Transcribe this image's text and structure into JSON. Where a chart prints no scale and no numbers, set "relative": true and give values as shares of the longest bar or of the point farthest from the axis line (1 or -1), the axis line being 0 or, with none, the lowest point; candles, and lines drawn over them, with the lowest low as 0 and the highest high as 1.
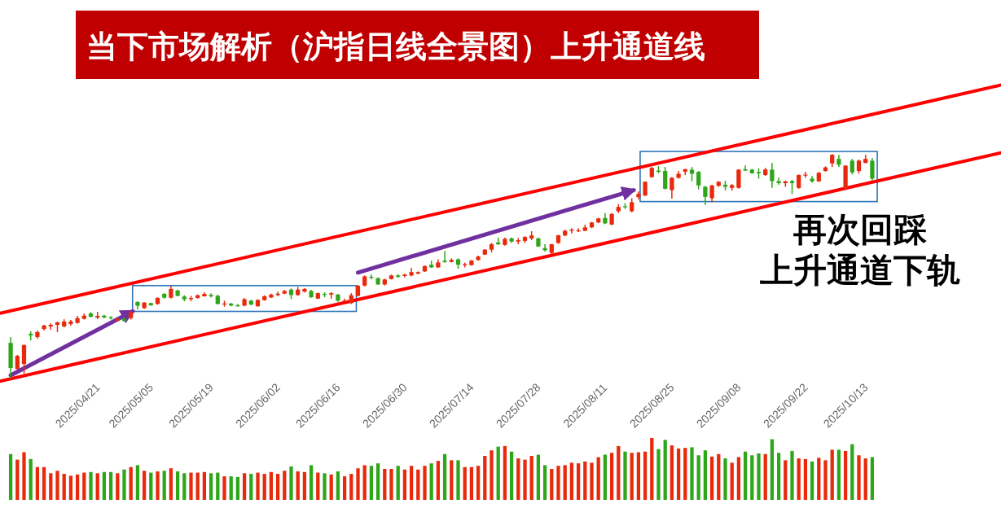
{
  "chart_data": [
    {
      "type": "candlestick",
      "title": "当下市场解析（沪指日线全景图）上升通道线",
      "relative": true,
      "tick_labels": "x",
      "categories": [
        null,
        null,
        null,
        null,
        null,
        null,
        null,
        null,
        null,
        null,
        "2025/04/21",
        null,
        null,
        null,
        null,
        null,
        null,
        null,
        "2025/05/05",
        null,
        null,
        null,
        null,
        null,
        null,
        null,
        null,
        "2025/05/19",
        null,
        null,
        null,
        null,
        null,
        null,
        null,
        null,
        null,
        "2025/06/02",
        null,
        null,
        null,
        null,
        null,
        null,
        null,
        null,
        "2025/06/16",
        null,
        null,
        null,
        null,
        null,
        null,
        null,
        null,
        null,
        "2025/06/30",
        null,
        null,
        null,
        null,
        null,
        null,
        null,
        null,
        null,
        "2025/07/14",
        null,
        null,
        null,
        null,
        null,
        null,
        null,
        null,
        null,
        "2025/07/28",
        null,
        null,
        null,
        null,
        null,
        null,
        null,
        null,
        null,
        "2025/08/11",
        null,
        null,
        null,
        null,
        null,
        null,
        null,
        null,
        null,
        "2025/08/25",
        null,
        null,
        null,
        null,
        null,
        null,
        null,
        null,
        null,
        "2025/09/08",
        null,
        null,
        null,
        null,
        null,
        null,
        null,
        null,
        null,
        "2025/09/22",
        null,
        null,
        null,
        null,
        null,
        null,
        null,
        null,
        "2025/10/13",
        null,
        null,
        null,
        null
      ],
      "ohlc": [
        [
          0.159,
          0.185,
          0,
          0.047
        ],
        [
          0.043,
          0.105,
          0.04,
          0.101
        ],
        [
          0.065,
          0.152,
          0.022,
          0.149
        ],
        [
          0.199,
          0.21,
          0.17,
          0.192
        ],
        [
          0.185,
          0.214,
          0.178,
          0.207
        ],
        [
          0.221,
          0.239,
          0.214,
          0.236
        ],
        [
          0.232,
          0.246,
          0.217,
          0.239
        ],
        [
          0.239,
          0.254,
          0.207,
          0.25
        ],
        [
          0.232,
          0.264,
          0.228,
          0.254
        ],
        [
          0.243,
          0.261,
          0.236,
          0.254
        ],
        [
          0.248,
          0.279,
          0.245,
          0.269
        ],
        [
          0.266,
          0.29,
          0.263,
          0.28
        ],
        [
          0.29,
          0.296,
          0.272,
          0.275
        ],
        [
          0.272,
          0.297,
          0.264,
          0.279
        ],
        [
          0.28,
          0.284,
          0.268,
          0.272
        ],
        [
          0.272,
          0.278,
          0.263,
          0.268
        ],
        [
          0.257,
          0.268,
          0.256,
          0.266
        ],
        [
          0.266,
          0.272,
          0.254,
          0.256
        ],
        [
          0.269,
          0.3,
          0.263,
          0.296
        ],
        [
          0.341,
          0.344,
          0.308,
          0.324
        ],
        [
          0.314,
          0.341,
          0.31,
          0.338
        ],
        [
          0.336,
          0.338,
          0.324,
          0.326
        ],
        [
          0.332,
          0.362,
          0.329,
          0.359
        ],
        [
          0.377,
          0.38,
          0.356,
          0.36
        ],
        [
          0.36,
          0.413,
          0.356,
          0.399
        ],
        [
          0.392,
          0.396,
          0.366,
          0.368
        ],
        [
          0.365,
          0.371,
          0.344,
          0.353
        ],
        [
          0.354,
          0.368,
          0.344,
          0.359
        ],
        [
          0.359,
          0.374,
          0.356,
          0.371
        ],
        [
          0.366,
          0.384,
          0.365,
          0.377
        ],
        [
          0.372,
          0.38,
          0.362,
          0.366
        ],
        [
          0.368,
          0.374,
          0.33,
          0.332
        ],
        [
          0.33,
          0.347,
          0.32,
          0.334
        ],
        [
          0.334,
          0.337,
          0.322,
          0.325
        ],
        [
          0.327,
          0.332,
          0.32,
          0.322
        ],
        [
          0.325,
          0.359,
          0.322,
          0.353
        ],
        [
          0.347,
          0.35,
          0.326,
          0.33
        ],
        [
          0.322,
          0.353,
          0.32,
          0.35
        ],
        [
          0.349,
          0.371,
          0.347,
          0.366
        ],
        [
          0.361,
          0.378,
          0.359,
          0.374
        ],
        [
          0.372,
          0.387,
          0.366,
          0.378
        ],
        [
          0.378,
          0.395,
          0.376,
          0.39
        ],
        [
          0.396,
          0.401,
          0.354,
          0.372
        ],
        [
          0.372,
          0.408,
          0.368,
          0.396
        ],
        [
          0.387,
          0.402,
          0.383,
          0.399
        ],
        [
          0.39,
          0.395,
          0.36,
          0.362
        ],
        [
          0.356,
          0.383,
          0.354,
          0.38
        ],
        [
          0.377,
          0.384,
          0.362,
          0.374
        ],
        [
          0.374,
          0.384,
          0.356,
          0.38
        ],
        [
          0.374,
          0.377,
          0.342,
          0.347
        ],
        [
          0.344,
          0.356,
          0.342,
          0.347
        ],
        [
          0.336,
          0.38,
          0.332,
          0.371
        ],
        [
          0.368,
          0.417,
          0.366,
          0.413
        ],
        [
          0.414,
          0.459,
          0.41,
          0.455
        ],
        [
          0.453,
          0.463,
          0.441,
          0.449
        ],
        [
          0.447,
          0.45,
          0.417,
          0.419
        ],
        [
          0.419,
          0.445,
          0.414,
          0.441
        ],
        [
          0.443,
          0.463,
          0.441,
          0.459
        ],
        [
          0.459,
          0.465,
          0.448,
          0.453
        ],
        [
          0.457,
          0.467,
          0.45,
          0.463
        ],
        [
          0.459,
          0.493,
          0.455,
          0.474
        ],
        [
          0.467,
          0.477,
          0.465,
          0.474
        ],
        [
          0.477,
          0.504,
          0.475,
          0.501
        ],
        [
          0.507,
          0.525,
          0.493,
          0.495
        ],
        [
          0.495,
          0.531,
          0.493,
          0.517
        ],
        [
          0.525,
          0.568,
          0.516,
          0.519
        ],
        [
          0.519,
          0.535,
          0.517,
          0.528
        ],
        [
          0.531,
          0.535,
          0.489,
          0.507
        ],
        [
          0.505,
          0.516,
          0.495,
          0.51
        ],
        [
          0.505,
          0.528,
          0.503,
          0.525
        ],
        [
          0.528,
          0.547,
          0.525,
          0.543
        ],
        [
          0.552,
          0.576,
          0.55,
          0.574
        ],
        [
          0.574,
          0.604,
          0.562,
          0.598
        ],
        [
          0.606,
          0.628,
          0.595,
          0.598
        ],
        [
          0.595,
          0.628,
          0.592,
          0.622
        ],
        [
          0.624,
          0.628,
          0.604,
          0.61
        ],
        [
          0.61,
          0.626,
          0.598,
          0.616
        ],
        [
          0.613,
          0.634,
          0.604,
          0.63
        ],
        [
          0.624,
          0.656,
          0.616,
          0.637
        ],
        [
          0.624,
          0.628,
          0.586,
          0.588
        ],
        [
          0.581,
          0.598,
          0.565,
          0.571
        ],
        [
          0.559,
          0.6,
          0.555,
          0.598
        ],
        [
          0.604,
          0.64,
          0.6,
          0.638
        ],
        [
          0.637,
          0.662,
          0.634,
          0.658
        ],
        [
          0.658,
          0.67,
          0.646,
          0.663
        ],
        [
          0.658,
          0.67,
          0.652,
          0.66
        ],
        [
          0.658,
          0.685,
          0.656,
          0.673
        ],
        [
          0.673,
          0.697,
          0.67,
          0.695
        ],
        [
          0.695,
          0.716,
          0.692,
          0.713
        ],
        [
          0.715,
          0.737,
          0.688,
          0.691
        ],
        [
          0.686,
          0.737,
          0.682,
          0.733
        ],
        [
          0.745,
          0.776,
          0.737,
          0.764
        ],
        [
          0.767,
          0.781,
          0.755,
          0.764
        ],
        [
          0.745,
          0.803,
          0.74,
          0.785
        ],
        [
          0.808,
          0.833,
          0.797,
          0.822
        ],
        [
          0.815,
          0.878,
          0.813,
          0.876
        ],
        [
          0.897,
          0.942,
          0.894,
          0.938
        ],
        [
          0.926,
          0.946,
          0.914,
          0.921
        ],
        [
          0.924,
          0.942,
          0.842,
          0.845
        ],
        [
          0.839,
          0.897,
          0.801,
          0.894
        ],
        [
          0.894,
          0.924,
          0.89,
          0.912
        ],
        [
          0.921,
          0.934,
          0.906,
          0.932
        ],
        [
          0.93,
          0.942,
          0.878,
          0.912
        ],
        [
          0.92,
          0.924,
          0.842,
          0.86
        ],
        [
          0.854,
          0.857,
          0.773,
          0.809
        ],
        [
          0.803,
          0.863,
          0.785,
          0.86
        ],
        [
          0.858,
          0.879,
          0.854,
          0.876
        ],
        [
          0.863,
          0.881,
          0.837,
          0.854
        ],
        [
          0.849,
          0.866,
          0.837,
          0.861
        ],
        [
          0.849,
          0.932,
          0.845,
          0.93
        ],
        [
          0.932,
          0.95,
          0.924,
          0.926
        ],
        [
          0.93,
          0.934,
          0.912,
          0.914
        ],
        [
          0.92,
          0.936,
          0.89,
          0.914
        ],
        [
          0.906,
          0.938,
          0.902,
          0.931
        ],
        [
          0.93,
          0.96,
          0.849,
          0.879
        ],
        [
          0.879,
          0.894,
          0.863,
          0.87
        ],
        [
          0.87,
          0.881,
          0.854,
          0.878
        ],
        [
          0.879,
          0.885,
          0.821,
          0.87
        ],
        [
          0.849,
          0.909,
          0.845,
          0.906
        ],
        [
          0.906,
          0.921,
          0.894,
          0.908
        ],
        [
          0.89,
          0.902,
          0.873,
          0.878
        ],
        [
          0.878,
          0.92,
          0.876,
          0.916
        ],
        [
          0.924,
          0.945,
          0.921,
          0.94
        ],
        [
          0.958,
          1.0,
          0.942,
          0.996
        ],
        [
          0.978,
          0.996,
          0.942,
          0.952
        ],
        [
          0.845,
          0.95,
          0.842,
          0.948
        ],
        [
          0.97,
          0.978,
          0.909,
          0.918
        ],
        [
          0.924,
          0.975,
          0.912,
          0.97
        ],
        [
          0.96,
          0.996,
          0.958,
          0.978
        ],
        [
          0.97,
          0.982,
          0.882,
          0.89
        ]
      ],
      "colors": [
        "#2ea61a",
        "#e8290b",
        "#e8290b",
        "#2ea61a",
        "#e8290b",
        "#e8290b",
        "#e8290b",
        "#e8290b",
        "#e8290b",
        "#e8290b",
        "#e8290b",
        "#e8290b",
        "#2ea61a",
        "#e8290b",
        "#2ea61a",
        "#2ea61a",
        "#e8290b",
        "#2ea61a",
        "#e8290b",
        "#2ea61a",
        "#e8290b",
        "#2ea61a",
        "#e8290b",
        "#2ea61a",
        "#e8290b",
        "#2ea61a",
        "#2ea61a",
        "#e8290b",
        "#e8290b",
        "#e8290b",
        "#2ea61a",
        "#2ea61a",
        "#e8290b",
        "#2ea61a",
        "#2ea61a",
        "#e8290b",
        "#2ea61a",
        "#e8290b",
        "#e8290b",
        "#e8290b",
        "#e8290b",
        "#e8290b",
        "#2ea61a",
        "#e8290b",
        "#e8290b",
        "#2ea61a",
        "#e8290b",
        "#2ea61a",
        "#e8290b",
        "#2ea61a",
        "#e8290b",
        "#e8290b",
        "#e8290b",
        "#e8290b",
        "#2ea61a",
        "#2ea61a",
        "#e8290b",
        "#e8290b",
        "#2ea61a",
        "#e8290b",
        "#e8290b",
        "#e8290b",
        "#e8290b",
        "#2ea61a",
        "#e8290b",
        "#2ea61a",
        "#e8290b",
        "#2ea61a",
        "#e8290b",
        "#e8290b",
        "#e8290b",
        "#e8290b",
        "#e8290b",
        "#2ea61a",
        "#e8290b",
        "#2ea61a",
        "#e8290b",
        "#e8290b",
        "#e8290b",
        "#2ea61a",
        "#2ea61a",
        "#e8290b",
        "#e8290b",
        "#e8290b",
        "#e8290b",
        "#e8290b",
        "#e8290b",
        "#e8290b",
        "#e8290b",
        "#2ea61a",
        "#e8290b",
        "#e8290b",
        "#2ea61a",
        "#e8290b",
        "#e8290b",
        "#e8290b",
        "#e8290b",
        "#2ea61a",
        "#2ea61a",
        "#e8290b",
        "#e8290b",
        "#e8290b",
        "#2ea61a",
        "#2ea61a",
        "#2ea61a",
        "#e8290b",
        "#e8290b",
        "#2ea61a",
        "#e8290b",
        "#e8290b",
        "#2ea61a",
        "#2ea61a",
        "#2ea61a",
        "#e8290b",
        "#2ea61a",
        "#2ea61a",
        "#e8290b",
        "#2ea61a",
        "#e8290b",
        "#e8290b",
        "#2ea61a",
        "#e8290b",
        "#e8290b",
        "#e8290b",
        "#2ea61a",
        "#e8290b",
        "#2ea61a",
        "#e8290b",
        "#e8290b",
        "#2ea61a"
      ],
      "series": [
        {
          "type": "line",
          "color": "#ff0000",
          "x": [
            "2025/04/21",
            "2025/10/13"
          ],
          "values": [
            0.369,
            1.149
          ]
        },
        {
          "type": "line",
          "color": "#ff0000",
          "x": [
            "2025/04/21",
            "2025/10/13"
          ],
          "values": [
            0.067,
            0.847
          ]
        }
      ],
      "annotations": [
        "再次回踩",
        "上升通道下轨"
      ]
    },
    {
      "type": "bar",
      "relative": true,
      "categories": [
        null,
        null,
        null,
        null,
        null,
        null,
        null,
        null,
        null,
        null,
        null,
        null,
        null,
        null,
        null,
        null,
        null,
        null,
        null,
        null,
        null,
        null,
        null,
        null,
        null,
        null,
        null,
        null,
        null,
        null,
        null,
        null,
        null,
        null,
        null,
        null,
        null,
        null,
        null,
        null,
        null,
        null,
        null,
        null,
        null,
        null,
        null,
        null,
        null,
        null,
        null,
        null,
        null,
        null,
        null,
        null,
        null,
        null,
        null,
        null,
        null,
        null,
        null,
        null,
        null,
        null,
        null,
        null,
        null,
        null,
        null,
        null,
        null,
        null,
        null,
        null,
        null,
        null,
        null,
        null,
        null,
        null,
        null,
        null,
        null,
        null,
        null,
        null,
        null,
        null,
        null,
        null,
        null,
        null,
        null,
        null,
        null,
        null,
        null,
        null,
        null,
        null,
        null,
        null,
        null,
        null,
        null,
        null,
        null,
        null,
        null,
        null,
        null,
        null,
        null,
        null,
        null,
        null,
        null,
        null,
        null,
        null,
        null,
        null,
        null,
        null,
        null,
        null,
        null,
        null
      ],
      "values": [
        0.74,
        0.65,
        0.77,
        0.66,
        0.53,
        0.53,
        0.43,
        0.47,
        0.42,
        0.39,
        0.41,
        0.44,
        0.45,
        0.43,
        0.45,
        0.45,
        0.43,
        0.49,
        0.53,
        0.56,
        0.47,
        0.44,
        0.46,
        0.47,
        0.51,
        0.46,
        0.43,
        0.44,
        0.44,
        0.45,
        0.43,
        0.44,
        0.38,
        0.38,
        0.37,
        0.43,
        0.42,
        0.44,
        0.42,
        0.45,
        0.42,
        0.47,
        0.54,
        0.46,
        0.45,
        0.56,
        0.44,
        0.43,
        0.41,
        0.46,
        0.38,
        0.42,
        0.51,
        0.56,
        0.55,
        0.59,
        0.5,
        0.5,
        0.55,
        0.49,
        0.55,
        0.49,
        0.55,
        0.59,
        0.63,
        0.74,
        0.64,
        0.64,
        0.53,
        0.53,
        0.55,
        0.71,
        0.8,
        0.86,
        0.87,
        0.78,
        0.67,
        0.65,
        0.71,
        0.73,
        0.56,
        0.5,
        0.55,
        0.56,
        0.6,
        0.59,
        0.62,
        0.6,
        0.69,
        0.73,
        0.76,
        0.87,
        0.78,
        0.76,
        0.77,
        0.78,
        1,
        0.82,
        0.97,
        0.88,
        0.83,
        0.84,
        0.85,
        0.72,
        0.8,
        0.7,
        0.74,
        0.67,
        0.6,
        0.69,
        0.78,
        0.72,
        0.75,
        0.74,
        0.98,
        0.76,
        0.64,
        0.79,
        0.67,
        0.66,
        0.62,
        0.68,
        0.64,
        0.81,
        0.81,
        0.79,
        0.9,
        0.72,
        0.67,
        0.69
      ],
      "colors": [
        "#2ea61a",
        "#e8290b",
        "#e8290b",
        "#2ea61a",
        "#e8290b",
        "#e8290b",
        "#e8290b",
        "#e8290b",
        "#e8290b",
        "#e8290b",
        "#e8290b",
        "#e8290b",
        "#2ea61a",
        "#e8290b",
        "#2ea61a",
        "#2ea61a",
        "#e8290b",
        "#2ea61a",
        "#e8290b",
        "#2ea61a",
        "#e8290b",
        "#2ea61a",
        "#e8290b",
        "#2ea61a",
        "#e8290b",
        "#2ea61a",
        "#2ea61a",
        "#e8290b",
        "#e8290b",
        "#e8290b",
        "#2ea61a",
        "#2ea61a",
        "#e8290b",
        "#2ea61a",
        "#2ea61a",
        "#e8290b",
        "#2ea61a",
        "#e8290b",
        "#e8290b",
        "#e8290b",
        "#e8290b",
        "#e8290b",
        "#2ea61a",
        "#e8290b",
        "#e8290b",
        "#2ea61a",
        "#e8290b",
        "#2ea61a",
        "#e8290b",
        "#2ea61a",
        "#e8290b",
        "#e8290b",
        "#e8290b",
        "#e8290b",
        "#2ea61a",
        "#2ea61a",
        "#e8290b",
        "#e8290b",
        "#2ea61a",
        "#e8290b",
        "#e8290b",
        "#e8290b",
        "#e8290b",
        "#2ea61a",
        "#e8290b",
        "#2ea61a",
        "#e8290b",
        "#2ea61a",
        "#e8290b",
        "#e8290b",
        "#e8290b",
        "#e8290b",
        "#e8290b",
        "#2ea61a",
        "#e8290b",
        "#2ea61a",
        "#e8290b",
        "#e8290b",
        "#e8290b",
        "#2ea61a",
        "#2ea61a",
        "#e8290b",
        "#e8290b",
        "#e8290b",
        "#e8290b",
        "#e8290b",
        "#e8290b",
        "#e8290b",
        "#e8290b",
        "#2ea61a",
        "#e8290b",
        "#e8290b",
        "#2ea61a",
        "#e8290b",
        "#e8290b",
        "#e8290b",
        "#e8290b",
        "#2ea61a",
        "#2ea61a",
        "#e8290b",
        "#e8290b",
        "#e8290b",
        "#2ea61a",
        "#2ea61a",
        "#2ea61a",
        "#e8290b",
        "#e8290b",
        "#2ea61a",
        "#e8290b",
        "#e8290b",
        "#2ea61a",
        "#2ea61a",
        "#2ea61a",
        "#e8290b",
        "#2ea61a",
        "#2ea61a",
        "#e8290b",
        "#2ea61a",
        "#e8290b",
        "#e8290b",
        "#2ea61a",
        "#e8290b",
        "#e8290b",
        "#e8290b",
        "#2ea61a",
        "#e8290b",
        "#2ea61a",
        "#e8290b",
        "#e8290b",
        "#2ea61a"
      ]
    }
  ]
}
